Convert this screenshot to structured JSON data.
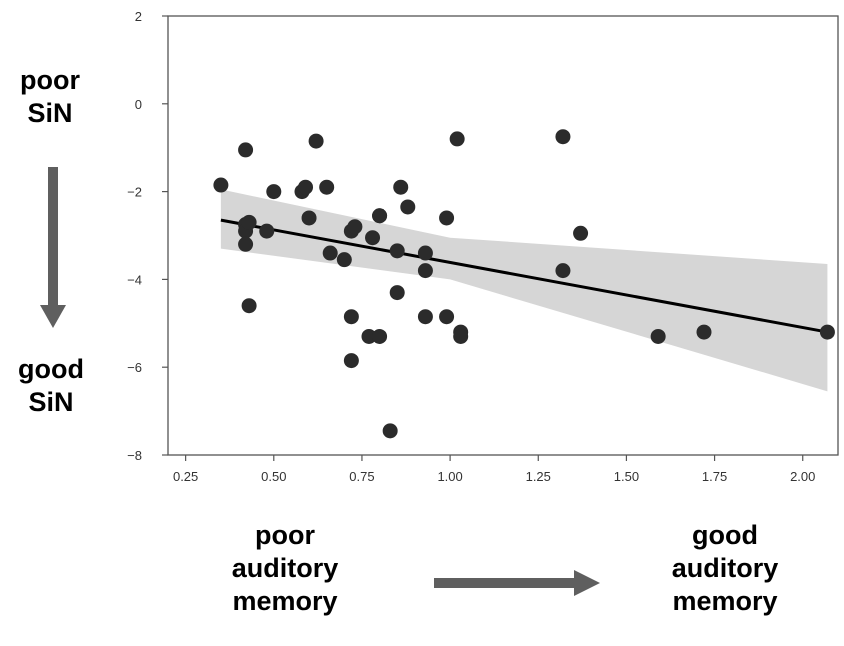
{
  "chart_data": {
    "type": "scatter",
    "title": "",
    "xlabel": "",
    "ylabel": "",
    "xlim": [
      0.2,
      2.1
    ],
    "ylim": [
      -8,
      2
    ],
    "x_ticks": [
      "0.25",
      "0.50",
      "0.75",
      "1.00",
      "1.25",
      "1.50",
      "1.75",
      "2.00"
    ],
    "y_ticks": [
      "2",
      "0",
      "−2",
      "−4",
      "−6",
      "−8"
    ],
    "grid": false,
    "points": [
      {
        "x": 0.35,
        "y": -1.85
      },
      {
        "x": 0.42,
        "y": -1.05
      },
      {
        "x": 0.42,
        "y": -2.75
      },
      {
        "x": 0.42,
        "y": -2.9
      },
      {
        "x": 0.42,
        "y": -3.2
      },
      {
        "x": 0.43,
        "y": -2.7
      },
      {
        "x": 0.43,
        "y": -4.6
      },
      {
        "x": 0.48,
        "y": -2.9
      },
      {
        "x": 0.5,
        "y": -2.0
      },
      {
        "x": 0.58,
        "y": -2.0
      },
      {
        "x": 0.59,
        "y": -1.9
      },
      {
        "x": 0.6,
        "y": -2.6
      },
      {
        "x": 0.62,
        "y": -0.85
      },
      {
        "x": 0.65,
        "y": -1.9
      },
      {
        "x": 0.66,
        "y": -3.4
      },
      {
        "x": 0.7,
        "y": -3.55
      },
      {
        "x": 0.72,
        "y": -2.9
      },
      {
        "x": 0.72,
        "y": -4.85
      },
      {
        "x": 0.72,
        "y": -5.85
      },
      {
        "x": 0.73,
        "y": -2.8
      },
      {
        "x": 0.77,
        "y": -5.3
      },
      {
        "x": 0.78,
        "y": -3.05
      },
      {
        "x": 0.8,
        "y": -2.55
      },
      {
        "x": 0.8,
        "y": -2.55
      },
      {
        "x": 0.8,
        "y": -5.3
      },
      {
        "x": 0.83,
        "y": -7.45
      },
      {
        "x": 0.85,
        "y": -3.35
      },
      {
        "x": 0.85,
        "y": -4.3
      },
      {
        "x": 0.86,
        "y": -1.9
      },
      {
        "x": 0.88,
        "y": -2.35
      },
      {
        "x": 0.93,
        "y": -4.85
      },
      {
        "x": 0.93,
        "y": -3.4
      },
      {
        "x": 0.93,
        "y": -3.8
      },
      {
        "x": 0.99,
        "y": -2.6
      },
      {
        "x": 0.99,
        "y": -4.85
      },
      {
        "x": 1.02,
        "y": -0.8
      },
      {
        "x": 1.03,
        "y": -5.2
      },
      {
        "x": 1.03,
        "y": -5.3
      },
      {
        "x": 1.32,
        "y": -0.75
      },
      {
        "x": 1.32,
        "y": -3.8
      },
      {
        "x": 1.37,
        "y": -2.95
      },
      {
        "x": 1.59,
        "y": -5.3
      },
      {
        "x": 1.72,
        "y": -5.2
      },
      {
        "x": 2.07,
        "y": -5.2
      }
    ],
    "regression": {
      "x": [
        0.35,
        2.07
      ],
      "y": [
        -2.65,
        -5.2
      ]
    },
    "confidence_band": {
      "x": [
        0.35,
        1.0,
        2.07
      ],
      "lower": [
        -3.3,
        -4.0,
        -6.55
      ],
      "upper": [
        -1.95,
        -3.05,
        -3.65
      ]
    },
    "colors": {
      "points": "#2b2b2b",
      "line": "#000000",
      "band": "#d6d6d6",
      "axis": "#555555"
    }
  },
  "annotations": {
    "y_top": [
      "poor",
      "SiN"
    ],
    "y_bottom": [
      "good",
      "SiN"
    ],
    "x_left": [
      "poor",
      "auditory",
      "memory"
    ],
    "x_right": [
      "good",
      "auditory",
      "memory"
    ]
  }
}
